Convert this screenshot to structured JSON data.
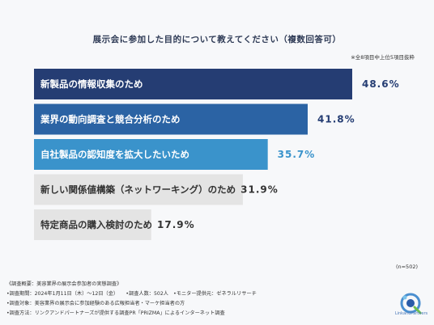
{
  "chart_data": {
    "type": "bar",
    "orientation": "horizontal",
    "title": "展示会に参加した目的について教えてください（複数回答可）",
    "note": "※全8項目中上位5項目抜粋",
    "categories": [
      "新製品の情報収集のため",
      "業界の動向調査と競合分析のため",
      "自社製品の認知度を拡大したいため",
      "新しい関係値構築（ネットワーキング）のため",
      "特定商品の購入検討のため"
    ],
    "values": [
      48.6,
      41.8,
      35.7,
      31.9,
      17.9
    ],
    "value_labels": [
      "48.6%",
      "41.8%",
      "35.7%",
      "31.9%",
      "17.9%"
    ],
    "xlim": [
      0,
      58
    ],
    "colors": [
      "#253d73",
      "#2b63a4",
      "#3a93cb",
      "#e4e4e4",
      "#e4e4e4"
    ],
    "label_colors": [
      "#ffffff",
      "#ffffff",
      "#ffffff",
      "#333333",
      "#333333"
    ],
    "value_colors": [
      "#253d73",
      "#253d73",
      "#3a93cb",
      "#333333",
      "#333333"
    ],
    "grid": false,
    "legend": "none"
  },
  "sample": "(n=502)",
  "survey_lines": [
    "《調査概要：美容業界の展示会参加者の実態調査》",
    "•調査期間：2024年1月11日（木）〜12日（金）　　•調査人数：502人　•モニター提供元：ゼネラルリサーチ",
    "•調査対象：美容業界の展示会に参加経験のある広報担当者・マーケ担当者の方",
    "•調査方法：リンクアンドパートナーズが提供する調査PR「PRIZMA」によるインターネット調査"
  ],
  "logo": {
    "icon": "link-and-partners-logo-icon",
    "text": "LinkandPartners"
  }
}
